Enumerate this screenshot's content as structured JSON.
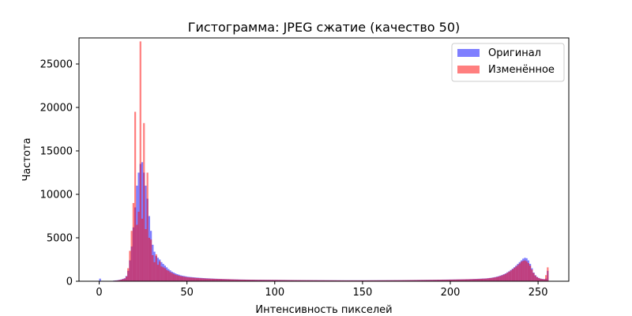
{
  "chart_data": {
    "type": "bar",
    "title": "Гистограмма: JPEG сжатие (качество 50)",
    "xlabel": "Интенсивность пикселей",
    "ylabel": "Частота",
    "xlim": [
      -11.5,
      267.5
    ],
    "ylim": [
      0,
      28000
    ],
    "xticks": [
      0,
      50,
      100,
      150,
      200,
      250
    ],
    "yticks": [
      0,
      5000,
      10000,
      15000,
      20000,
      25000
    ],
    "grid": false,
    "legend_position": "top-right",
    "bin_width": 1,
    "series": [
      {
        "name": "Оригинал",
        "color": "#0000ff",
        "opacity": 0.5,
        "points": [
          [
            0,
            300
          ],
          [
            8,
            80
          ],
          [
            10,
            120
          ],
          [
            12,
            200
          ],
          [
            14,
            350
          ],
          [
            15,
            600
          ],
          [
            16,
            1200
          ],
          [
            17,
            2400
          ],
          [
            18,
            4000
          ],
          [
            19,
            6200
          ],
          [
            20,
            8500
          ],
          [
            21,
            11000
          ],
          [
            22,
            12500
          ],
          [
            23,
            13500
          ],
          [
            24,
            13700
          ],
          [
            25,
            12500
          ],
          [
            26,
            11000
          ],
          [
            27,
            9500
          ],
          [
            28,
            7500
          ],
          [
            29,
            5800
          ],
          [
            30,
            4200
          ],
          [
            31,
            3400
          ],
          [
            32,
            2900
          ],
          [
            33,
            2700
          ],
          [
            34,
            2500
          ],
          [
            35,
            2200
          ],
          [
            36,
            2000
          ],
          [
            37,
            1800
          ],
          [
            38,
            1600
          ],
          [
            39,
            1400
          ],
          [
            40,
            1250
          ],
          [
            41,
            1100
          ],
          [
            42,
            1000
          ],
          [
            43,
            900
          ],
          [
            44,
            820
          ],
          [
            45,
            750
          ],
          [
            46,
            680
          ],
          [
            48,
            600
          ],
          [
            50,
            520
          ],
          [
            55,
            420
          ],
          [
            60,
            350
          ],
          [
            65,
            300
          ],
          [
            70,
            260
          ],
          [
            75,
            230
          ],
          [
            80,
            200
          ],
          [
            90,
            170
          ],
          [
            100,
            160
          ],
          [
            110,
            140
          ],
          [
            120,
            130
          ],
          [
            130,
            120
          ],
          [
            140,
            110
          ],
          [
            150,
            110
          ],
          [
            160,
            120
          ],
          [
            170,
            130
          ],
          [
            180,
            150
          ],
          [
            190,
            170
          ],
          [
            200,
            200
          ],
          [
            210,
            240
          ],
          [
            215,
            280
          ],
          [
            220,
            330
          ],
          [
            223,
            400
          ],
          [
            225,
            480
          ],
          [
            227,
            580
          ],
          [
            229,
            720
          ],
          [
            231,
            900
          ],
          [
            233,
            1150
          ],
          [
            235,
            1450
          ],
          [
            237,
            1800
          ],
          [
            239,
            2200
          ],
          [
            240,
            2400
          ],
          [
            241,
            2600
          ],
          [
            242,
            2700
          ],
          [
            243,
            2650
          ],
          [
            244,
            2400
          ],
          [
            245,
            2000
          ],
          [
            246,
            1500
          ],
          [
            247,
            1000
          ],
          [
            248,
            700
          ],
          [
            249,
            500
          ],
          [
            250,
            380
          ],
          [
            251,
            300
          ],
          [
            252,
            260
          ],
          [
            253,
            240
          ],
          [
            254,
            300
          ],
          [
            255,
            1200
          ]
        ]
      },
      {
        "name": "Изменённое",
        "color": "#ff0000",
        "opacity": 0.5,
        "points": [
          [
            8,
            60
          ],
          [
            10,
            100
          ],
          [
            12,
            180
          ],
          [
            14,
            300
          ],
          [
            15,
            550
          ],
          [
            16,
            1500
          ],
          [
            17,
            3500
          ],
          [
            18,
            5800
          ],
          [
            19,
            9000
          ],
          [
            20,
            19500
          ],
          [
            21,
            6500
          ],
          [
            22,
            8000
          ],
          [
            23,
            27600
          ],
          [
            24,
            7200
          ],
          [
            25,
            18200
          ],
          [
            26,
            6000
          ],
          [
            27,
            12500
          ],
          [
            28,
            5000
          ],
          [
            29,
            4800
          ],
          [
            30,
            3000
          ],
          [
            31,
            2200
          ],
          [
            32,
            3100
          ],
          [
            33,
            1900
          ],
          [
            34,
            2300
          ],
          [
            35,
            1700
          ],
          [
            36,
            1600
          ],
          [
            37,
            1500
          ],
          [
            38,
            1300
          ],
          [
            39,
            1200
          ],
          [
            40,
            1050
          ],
          [
            41,
            950
          ],
          [
            42,
            850
          ],
          [
            43,
            760
          ],
          [
            44,
            700
          ],
          [
            45,
            640
          ],
          [
            46,
            590
          ],
          [
            48,
            520
          ],
          [
            50,
            460
          ],
          [
            55,
            380
          ],
          [
            60,
            320
          ],
          [
            65,
            280
          ],
          [
            70,
            250
          ],
          [
            75,
            220
          ],
          [
            80,
            190
          ],
          [
            90,
            160
          ],
          [
            100,
            150
          ],
          [
            110,
            130
          ],
          [
            120,
            120
          ],
          [
            130,
            110
          ],
          [
            140,
            100
          ],
          [
            150,
            100
          ],
          [
            160,
            110
          ],
          [
            170,
            120
          ],
          [
            180,
            140
          ],
          [
            190,
            160
          ],
          [
            200,
            190
          ],
          [
            210,
            230
          ],
          [
            215,
            260
          ],
          [
            220,
            310
          ],
          [
            223,
            380
          ],
          [
            225,
            450
          ],
          [
            227,
            540
          ],
          [
            229,
            680
          ],
          [
            231,
            850
          ],
          [
            233,
            1100
          ],
          [
            235,
            1380
          ],
          [
            237,
            1700
          ],
          [
            239,
            2050
          ],
          [
            240,
            2250
          ],
          [
            241,
            2350
          ],
          [
            242,
            2400
          ],
          [
            243,
            2300
          ],
          [
            244,
            2100
          ],
          [
            245,
            1800
          ],
          [
            246,
            1350
          ],
          [
            247,
            950
          ],
          [
            248,
            650
          ],
          [
            249,
            470
          ],
          [
            250,
            360
          ],
          [
            251,
            290
          ],
          [
            252,
            250
          ],
          [
            253,
            230
          ],
          [
            254,
            700
          ],
          [
            255,
            1600
          ]
        ]
      }
    ]
  }
}
